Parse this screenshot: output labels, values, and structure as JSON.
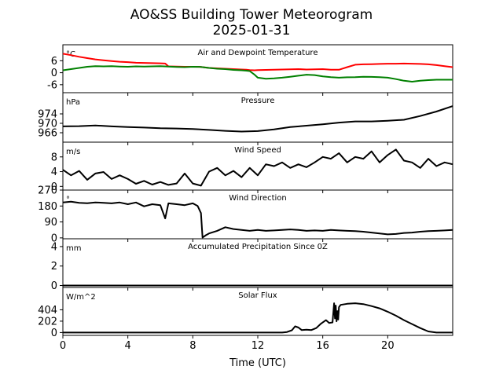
{
  "figure": {
    "title_line1": "AO&SS Building Tower Meteorogram",
    "title_line2": "2025-01-31"
  },
  "chart_data": {
    "type": "line",
    "xlabel": "Time (UTC)",
    "xlim": [
      0,
      24
    ],
    "x_ticks": [
      0,
      4,
      8,
      12,
      16,
      20
    ],
    "panels": [
      {
        "id": "temp",
        "title": "Air and Dewpoint Temperature",
        "unit": "°C",
        "ylim": [
          -10,
          14
        ],
        "y_ticks": [
          -6,
          0,
          6
        ],
        "series": [
          {
            "color": "#ff0000",
            "x": [
              0,
              0.5,
              1,
              1.5,
              2,
              2.5,
              3,
              3.5,
              4,
              4.5,
              5,
              5.5,
              6,
              6.3,
              6.5,
              7,
              7.5,
              8,
              8.5,
              9,
              9.5,
              10,
              10.5,
              11,
              11.3,
              11.5,
              11.8,
              12,
              12.5,
              13,
              13.5,
              14,
              14.5,
              15,
              15.5,
              16,
              16.5,
              17,
              17.5,
              18,
              18.5,
              19,
              19.5,
              20,
              20.5,
              21,
              21.5,
              22,
              22.5,
              23,
              23.5,
              24
            ],
            "values": [
              9.5,
              8.8,
              8.0,
              7.3,
              6.7,
              6.2,
              5.8,
              5.5,
              5.3,
              5.0,
              4.9,
              4.8,
              4.7,
              4.6,
              3.2,
              3.1,
              3.0,
              3.0,
              2.9,
              2.4,
              2.2,
              2.0,
              1.8,
              1.6,
              1.5,
              1.3,
              1.2,
              1.3,
              1.4,
              1.5,
              1.6,
              1.7,
              1.8,
              1.6,
              1.7,
              1.8,
              1.5,
              1.5,
              2.8,
              4.0,
              4.2,
              4.3,
              4.4,
              4.5,
              4.5,
              4.6,
              4.5,
              4.4,
              4.2,
              3.8,
              3.3,
              2.8
            ]
          },
          {
            "color": "#008000",
            "x": [
              0,
              0.5,
              1,
              1.5,
              2,
              2.5,
              3,
              3.5,
              4,
              4.5,
              5,
              5.5,
              6,
              6.5,
              7,
              7.5,
              8,
              8.5,
              9,
              9.5,
              10,
              10.5,
              11,
              11.3,
              11.5,
              11.8,
              12,
              12.5,
              13,
              13.5,
              14,
              14.5,
              15,
              15.5,
              16,
              16.5,
              17,
              17.5,
              18,
              18.5,
              19,
              19.5,
              20,
              20.5,
              21,
              21.5,
              22,
              22.5,
              23,
              23.5,
              24
            ],
            "values": [
              1.2,
              1.8,
              2.4,
              3.0,
              3.3,
              3.2,
              3.3,
              3.1,
              3.0,
              3.2,
              3.1,
              3.2,
              3.3,
              3.1,
              2.9,
              2.8,
              3.0,
              2.9,
              2.4,
              2.0,
              1.8,
              1.4,
              1.2,
              1.0,
              0.8,
              -1.0,
              -2.5,
              -3.0,
              -2.8,
              -2.5,
              -2.0,
              -1.5,
              -1.0,
              -1.2,
              -1.8,
              -2.2,
              -2.5,
              -2.3,
              -2.2,
              -2.0,
              -2.1,
              -2.2,
              -2.5,
              -3.2,
              -4.0,
              -4.5,
              -4.0,
              -3.7,
              -3.5,
              -3.5,
              -3.5
            ]
          }
        ]
      },
      {
        "id": "pressure",
        "title": "Pressure",
        "unit": "hPa",
        "ylim": [
          962,
          983
        ],
        "y_ticks": [
          966,
          970,
          974
        ],
        "series": [
          {
            "color": "#000000",
            "x": [
              0,
              1,
              2,
              3,
              4,
              5,
              6,
              7,
              8,
              9,
              10,
              11,
              12,
              13,
              14,
              15,
              16,
              17,
              18,
              19,
              20,
              21,
              22,
              23,
              24
            ],
            "values": [
              968.7,
              968.8,
              969.1,
              968.7,
              968.4,
              968.2,
              967.9,
              967.8,
              967.6,
              967.2,
              966.8,
              966.5,
              966.7,
              967.4,
              968.4,
              969.0,
              969.6,
              970.3,
              970.8,
              970.8,
              971.1,
              971.5,
              973.1,
              975.0,
              977.3
            ]
          }
        ]
      },
      {
        "id": "wind_speed",
        "title": "Wind Speed",
        "unit": "m/s",
        "ylim": [
          -1,
          12
        ],
        "y_ticks": [
          0,
          4,
          8
        ],
        "series": [
          {
            "color": "#000000",
            "x": [
              0,
              0.5,
              1,
              1.5,
              2,
              2.5,
              3,
              3.5,
              4,
              4.5,
              5,
              5.5,
              6,
              6.5,
              7,
              7.5,
              8,
              8.5,
              9,
              9.5,
              10,
              10.5,
              11,
              11.5,
              12,
              12.5,
              13,
              13.5,
              14,
              14.5,
              15,
              15.5,
              16,
              16.5,
              17,
              17.5,
              18,
              18.5,
              19,
              19.5,
              20,
              20.5,
              21,
              21.5,
              22,
              22.5,
              23,
              23.5,
              24
            ],
            "values": [
              4.5,
              3.0,
              4.2,
              1.8,
              3.5,
              3.9,
              2.0,
              3.0,
              2.0,
              0.7,
              1.5,
              0.5,
              1.2,
              0.4,
              0.8,
              3.5,
              0.8,
              0.2,
              4.0,
              5.0,
              3.0,
              4.2,
              2.5,
              5.0,
              3.0,
              6.0,
              5.5,
              6.5,
              5.0,
              6.0,
              5.2,
              6.5,
              8.0,
              7.5,
              9.0,
              6.5,
              8.0,
              7.5,
              9.5,
              6.5,
              8.5,
              10.0,
              7.0,
              6.5,
              5.0,
              7.5,
              5.5,
              6.5,
              6.0
            ]
          }
        ]
      },
      {
        "id": "wind_direction",
        "title": "Wind Direction",
        "unit": "°",
        "ylim": [
          -5,
          270
        ],
        "y_ticks": [
          0,
          90,
          180,
          270
        ],
        "series": [
          {
            "color": "#000000",
            "x": [
              0,
              0.5,
              1,
              1.5,
              2,
              2.5,
              3,
              3.5,
              4,
              4.5,
              5,
              5.5,
              6,
              6.3,
              6.5,
              7,
              7.5,
              8,
              8.3,
              8.5,
              8.6,
              8.8,
              9,
              9.5,
              10,
              10.5,
              11,
              11.5,
              12,
              12.5,
              13,
              13.5,
              14,
              14.5,
              15,
              15.5,
              16,
              16.5,
              17,
              17.5,
              18,
              18.5,
              19,
              19.5,
              20,
              20.5,
              21,
              21.5,
              22,
              22.5,
              23,
              23.5,
              24
            ],
            "values": [
              200,
              205,
              198,
              196,
              200,
              198,
              195,
              200,
              190,
              200,
              178,
              190,
              185,
              110,
              195,
              190,
              185,
              195,
              180,
              140,
              2,
              15,
              25,
              40,
              60,
              50,
              45,
              40,
              45,
              40,
              42,
              45,
              48,
              45,
              40,
              42,
              40,
              45,
              42,
              40,
              38,
              35,
              30,
              25,
              20,
              22,
              28,
              30,
              35,
              38,
              40,
              42,
              45
            ]
          }
        ]
      },
      {
        "id": "precip",
        "title": "Accumulated Precipitation Since 0Z",
        "unit": "mm",
        "ylim": [
          -0.2,
          4.8
        ],
        "y_ticks": [
          0,
          2,
          4
        ],
        "series": [
          {
            "color": "#000000",
            "x": [
              0,
              24
            ],
            "values": [
              0,
              0
            ]
          }
        ]
      },
      {
        "id": "solar",
        "title": "Solar Flux",
        "unit": "W/m^2",
        "ylim": [
          -50,
          800
        ],
        "y_ticks": [
          0,
          202,
          404
        ],
        "series": [
          {
            "color": "#000000",
            "x": [
              0,
              13.5,
              13.8,
              14.1,
              14.3,
              14.5,
              14.7,
              15,
              15.3,
              15.6,
              15.9,
              16.2,
              16.4,
              16.6,
              16.7,
              16.75,
              16.8,
              16.85,
              16.9,
              16.95,
              17,
              17.1,
              17.5,
              18,
              18.5,
              19,
              19.5,
              20,
              20.5,
              21,
              21.5,
              22,
              22.5,
              23,
              23.2,
              24
            ],
            "values": [
              0,
              0,
              10,
              40,
              110,
              90,
              45,
              50,
              45,
              80,
              160,
              220,
              170,
              180,
              520,
              250,
              480,
              200,
              380,
              230,
              450,
              490,
              510,
              520,
              505,
              470,
              430,
              370,
              300,
              220,
              150,
              80,
              20,
              0,
              0,
              0
            ]
          }
        ]
      }
    ]
  }
}
